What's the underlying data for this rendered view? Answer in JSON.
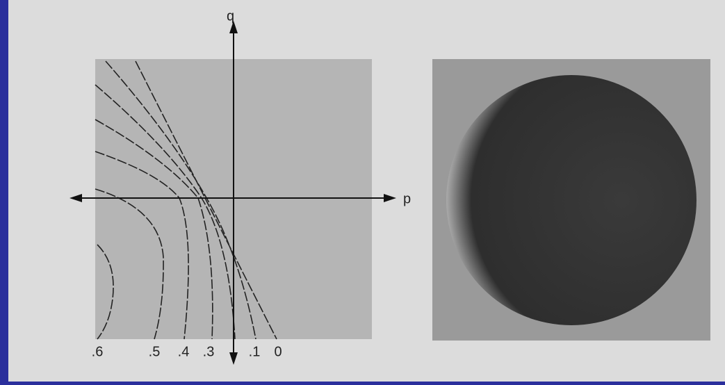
{
  "figure": {
    "axis_labels": {
      "vertical": "q",
      "horizontal": "p"
    },
    "contour_labels": [
      ".6",
      ".5",
      ".4",
      ".3",
      ".1",
      "0"
    ]
  }
}
